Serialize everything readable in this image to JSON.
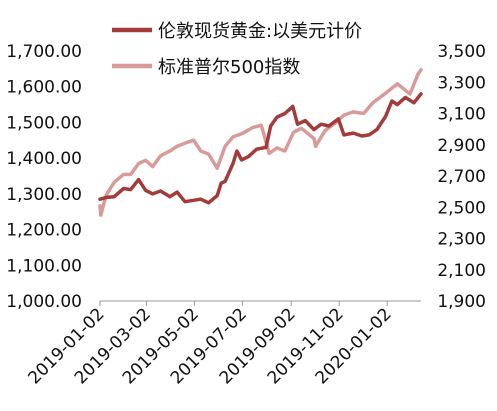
{
  "chart_data": {
    "type": "line",
    "x_ticks": [
      "2019-01-02",
      "2019-03-02",
      "2019-05-02",
      "2019-07-02",
      "2019-09-02",
      "2019-11-02",
      "2020-01-02"
    ],
    "y_left": {
      "ticks": [
        "1,000.00",
        "1,100.00",
        "1,200.00",
        "1,300.00",
        "1,400.00",
        "1,500.00",
        "1,600.00",
        "1,700.00"
      ],
      "range": [
        1000,
        1700
      ]
    },
    "y_right": {
      "ticks": [
        "1,900",
        "2,100",
        "2,300",
        "2,500",
        "2,700",
        "2,900",
        "3,100",
        "3,300",
        "3,500"
      ],
      "range": [
        1900,
        3500
      ]
    },
    "x_range": [
      "2019-01-02",
      "2020-02-14"
    ],
    "series": [
      {
        "name": "伦敦现货黄金:以美元计价",
        "axis": "left",
        "color": "#a33b3b",
        "points": [
          [
            "2019-01-02",
            1285
          ],
          [
            "2019-01-10",
            1290
          ],
          [
            "2019-01-20",
            1292
          ],
          [
            "2019-02-01",
            1315
          ],
          [
            "2019-02-10",
            1312
          ],
          [
            "2019-02-20",
            1340
          ],
          [
            "2019-03-01",
            1310
          ],
          [
            "2019-03-10",
            1300
          ],
          [
            "2019-03-20",
            1308
          ],
          [
            "2019-04-01",
            1292
          ],
          [
            "2019-04-10",
            1305
          ],
          [
            "2019-04-20",
            1278
          ],
          [
            "2019-05-01",
            1282
          ],
          [
            "2019-05-10",
            1285
          ],
          [
            "2019-05-20",
            1275
          ],
          [
            "2019-05-31",
            1295
          ],
          [
            "2019-06-05",
            1330
          ],
          [
            "2019-06-10",
            1335
          ],
          [
            "2019-06-20",
            1385
          ],
          [
            "2019-06-25",
            1420
          ],
          [
            "2019-07-01",
            1395
          ],
          [
            "2019-07-10",
            1405
          ],
          [
            "2019-07-20",
            1425
          ],
          [
            "2019-08-01",
            1430
          ],
          [
            "2019-08-07",
            1490
          ],
          [
            "2019-08-15",
            1515
          ],
          [
            "2019-08-25",
            1525
          ],
          [
            "2019-09-04",
            1545
          ],
          [
            "2019-09-10",
            1495
          ],
          [
            "2019-09-20",
            1505
          ],
          [
            "2019-10-01",
            1480
          ],
          [
            "2019-10-10",
            1495
          ],
          [
            "2019-10-20",
            1490
          ],
          [
            "2019-11-01",
            1510
          ],
          [
            "2019-11-08",
            1465
          ],
          [
            "2019-11-20",
            1470
          ],
          [
            "2019-12-01",
            1462
          ],
          [
            "2019-12-10",
            1465
          ],
          [
            "2019-12-20",
            1480
          ],
          [
            "2019-12-31",
            1517
          ],
          [
            "2020-01-08",
            1560
          ],
          [
            "2020-01-15",
            1550
          ],
          [
            "2020-01-25",
            1570
          ],
          [
            "2020-02-05",
            1555
          ],
          [
            "2020-02-14",
            1580
          ]
        ]
      },
      {
        "name": "标准普尔500指数",
        "axis": "right",
        "color": "#d99a9a",
        "points": [
          [
            "2019-01-02",
            2510
          ],
          [
            "2019-01-03",
            2450
          ],
          [
            "2019-01-10",
            2580
          ],
          [
            "2019-01-20",
            2660
          ],
          [
            "2019-02-01",
            2710
          ],
          [
            "2019-02-10",
            2710
          ],
          [
            "2019-02-20",
            2780
          ],
          [
            "2019-03-01",
            2800
          ],
          [
            "2019-03-10",
            2760
          ],
          [
            "2019-03-20",
            2830
          ],
          [
            "2019-04-01",
            2860
          ],
          [
            "2019-04-10",
            2890
          ],
          [
            "2019-04-20",
            2910
          ],
          [
            "2019-05-01",
            2930
          ],
          [
            "2019-05-10",
            2860
          ],
          [
            "2019-05-20",
            2840
          ],
          [
            "2019-05-31",
            2750
          ],
          [
            "2019-06-10",
            2890
          ],
          [
            "2019-06-20",
            2950
          ],
          [
            "2019-07-01",
            2970
          ],
          [
            "2019-07-15",
            3010
          ],
          [
            "2019-07-26",
            3025
          ],
          [
            "2019-08-05",
            2845
          ],
          [
            "2019-08-15",
            2880
          ],
          [
            "2019-08-25",
            2860
          ],
          [
            "2019-09-05",
            2980
          ],
          [
            "2019-09-15",
            3005
          ],
          [
            "2019-10-01",
            2940
          ],
          [
            "2019-10-03",
            2890
          ],
          [
            "2019-10-15",
            2990
          ],
          [
            "2019-10-28",
            3040
          ],
          [
            "2019-11-08",
            3090
          ],
          [
            "2019-11-20",
            3110
          ],
          [
            "2019-12-03",
            3100
          ],
          [
            "2019-12-15",
            3170
          ],
          [
            "2019-12-31",
            3230
          ],
          [
            "2020-01-15",
            3290
          ],
          [
            "2020-01-31",
            3225
          ],
          [
            "2020-02-10",
            3350
          ],
          [
            "2020-02-14",
            3380
          ]
        ]
      }
    ],
    "grid": false,
    "legend_position": "top"
  }
}
